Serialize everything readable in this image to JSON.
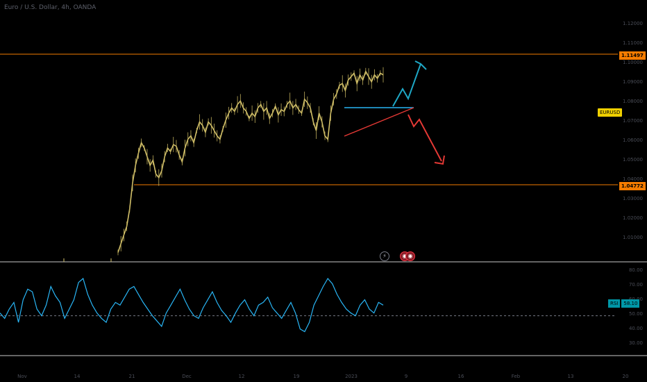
{
  "header": {
    "title": "Euro / U.S. Dollar, 4h, OANDA"
  },
  "symbol_badge": "EURUSD",
  "levels": {
    "upper": {
      "label": "1.11497",
      "value": 1.11497,
      "color": "#f57c00"
    },
    "lower": {
      "label": "1.04772",
      "value": 1.04772,
      "color": "#f57c00"
    }
  },
  "price_axis": [
    "1.12000",
    "1.11000",
    "1.10000",
    "1.09000",
    "1.08000",
    "1.07000",
    "1.06000",
    "1.05000",
    "1.04000",
    "1.03000",
    "1.02000",
    "1.01000"
  ],
  "rsi": {
    "name": "RSI",
    "value_label": "58.10",
    "axis": [
      "80.00",
      "70.00",
      "60.00",
      "50.00",
      "40.00",
      "30.00"
    ],
    "midline": 50,
    "color": "#29b6f6"
  },
  "time_axis": [
    "Nov",
    "14",
    "21",
    "Dec",
    "12",
    "19",
    "2023",
    "9",
    "16",
    "Feb",
    "13",
    "20"
  ],
  "colors": {
    "candles": "#d4c26a",
    "background": "#000000",
    "up_arrow": "#1ea7c5",
    "down_arrow": "#e53935",
    "triangle_top": "#29b6f6",
    "triangle_bottom": "#e53935"
  },
  "events": {
    "flash": "⚡",
    "flag": "◉"
  },
  "chart_data": {
    "type": "line",
    "title": "Euro / U.S. Dollar, 4h, OANDA",
    "series": [
      {
        "name": "EURUSD",
        "values": [
          0.985,
          0.99,
          0.995,
          1.0,
          1.01,
          1.025,
          1.035,
          1.042,
          1.048,
          1.045,
          1.04,
          1.035,
          1.038,
          1.03,
          1.028,
          1.032,
          1.04,
          1.045,
          1.043,
          1.047,
          1.046,
          1.041,
          1.037,
          1.045,
          1.05,
          1.052,
          1.048,
          1.055,
          1.06,
          1.058,
          1.054,
          1.06,
          1.058,
          1.055,
          1.052,
          1.05,
          1.056,
          1.061,
          1.065,
          1.068,
          1.066,
          1.07,
          1.072,
          1.068,
          1.066,
          1.062,
          1.065,
          1.063,
          1.068,
          1.07,
          1.066,
          1.068,
          1.062,
          1.065,
          1.069,
          1.064,
          1.067,
          1.066,
          1.07,
          1.072,
          1.068,
          1.07,
          1.067,
          1.065,
          1.073,
          1.071,
          1.068,
          1.06,
          1.055,
          1.065,
          1.06,
          1.052,
          1.05,
          1.065,
          1.073,
          1.076,
          1.081,
          1.082,
          1.078,
          1.084,
          1.086,
          1.088,
          1.082,
          1.087,
          1.084,
          1.089,
          1.086,
          1.083,
          1.087,
          1.085,
          1.088,
          1.087
        ]
      }
    ],
    "rsi_values": [
      52,
      48,
      55,
      60,
      45,
      62,
      70,
      68,
      55,
      50,
      58,
      72,
      65,
      60,
      48,
      55,
      62,
      75,
      78,
      66,
      58,
      52,
      48,
      45,
      55,
      60,
      58,
      64,
      70,
      72,
      66,
      60,
      55,
      50,
      46,
      42,
      52,
      58,
      64,
      70,
      62,
      55,
      50,
      48,
      56,
      62,
      68,
      60,
      54,
      50,
      45,
      52,
      58,
      62,
      55,
      50,
      58,
      60,
      64,
      56,
      52,
      48,
      54,
      60,
      52,
      40,
      38,
      45,
      58,
      65,
      72,
      78,
      74,
      66,
      60,
      55,
      52,
      50,
      58,
      62,
      55,
      52,
      60,
      58
    ],
    "levels": [
      1.11497,
      1.04772
    ],
    "ylim": [
      0.98,
      1.13
    ],
    "rsi_ylim": [
      20,
      90
    ],
    "grid": false
  }
}
